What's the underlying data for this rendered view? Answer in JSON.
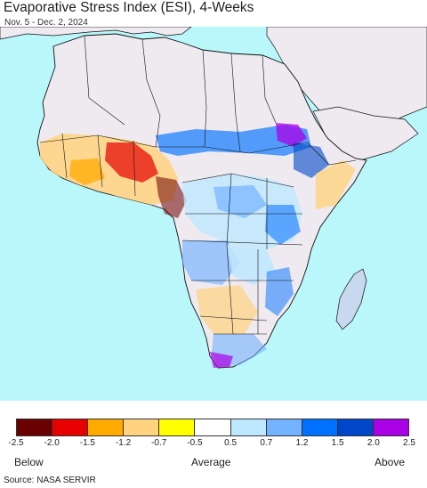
{
  "title": "Evaporative Stress Index (ESI), 4-Weeks",
  "subtitle": "Nov. 5 - Dec. 2, 2024",
  "legend": {
    "colors": [
      "#6b0000",
      "#e60000",
      "#ffaa00",
      "#ffd37f",
      "#ffff00",
      "#ffffff",
      "#bee8ff",
      "#73b2ff",
      "#0070ff",
      "#0046c8",
      "#a900e6"
    ],
    "ticks": [
      "-2.5",
      "-2.0",
      "-1.5",
      "-1.2",
      "-0.7",
      "-0.5",
      "0.5",
      "0.7",
      "1.2",
      "1.5",
      "2.0",
      "2.5"
    ],
    "below_label": "Below",
    "average_label": "Average",
    "above_label": "Above"
  },
  "source": "Source: NASA SERVIR",
  "map_colors": {
    "ocean": "#b9f7fb",
    "no_data_land": "#eeeaf0",
    "border": "#111111"
  }
}
